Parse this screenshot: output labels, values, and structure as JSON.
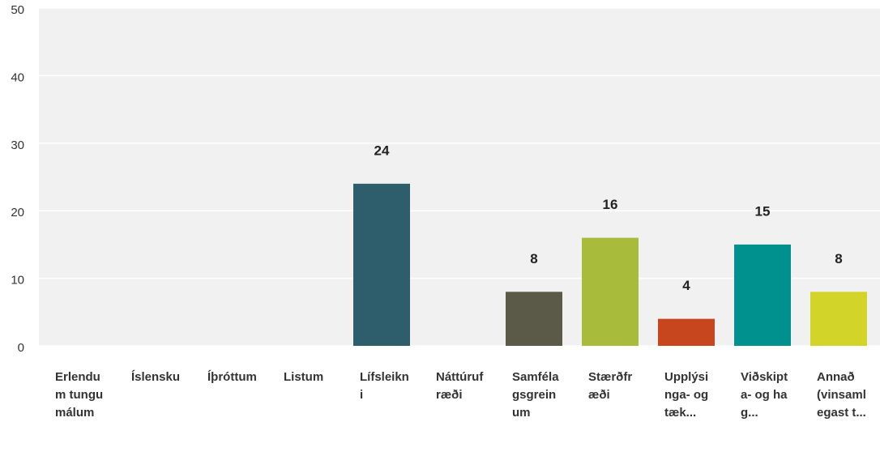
{
  "chart_data": {
    "type": "bar",
    "categories": [
      "Erlendum tungumálum",
      "Íslensku",
      "Íþróttum",
      "Listum",
      "Lífsleikni",
      "Náttúrufræði",
      "Samfélagsgreinum",
      "Stærðfræði",
      "Upplýsinga- og tæk...",
      "Viðskipta- og hag...",
      "Annað (vinsamlegast t..."
    ],
    "values": [
      0,
      0,
      0,
      0,
      24,
      0,
      8,
      16,
      4,
      15,
      8
    ],
    "colors": [
      null,
      null,
      null,
      null,
      "#2e5e6b",
      null,
      "#5b5a48",
      "#a8bb3a",
      "#c8461e",
      "#00918f",
      "#d3d42a"
    ],
    "ylim": [
      0,
      50
    ],
    "yticks": [
      0,
      10,
      20,
      30,
      40,
      50
    ],
    "grid": true
  }
}
